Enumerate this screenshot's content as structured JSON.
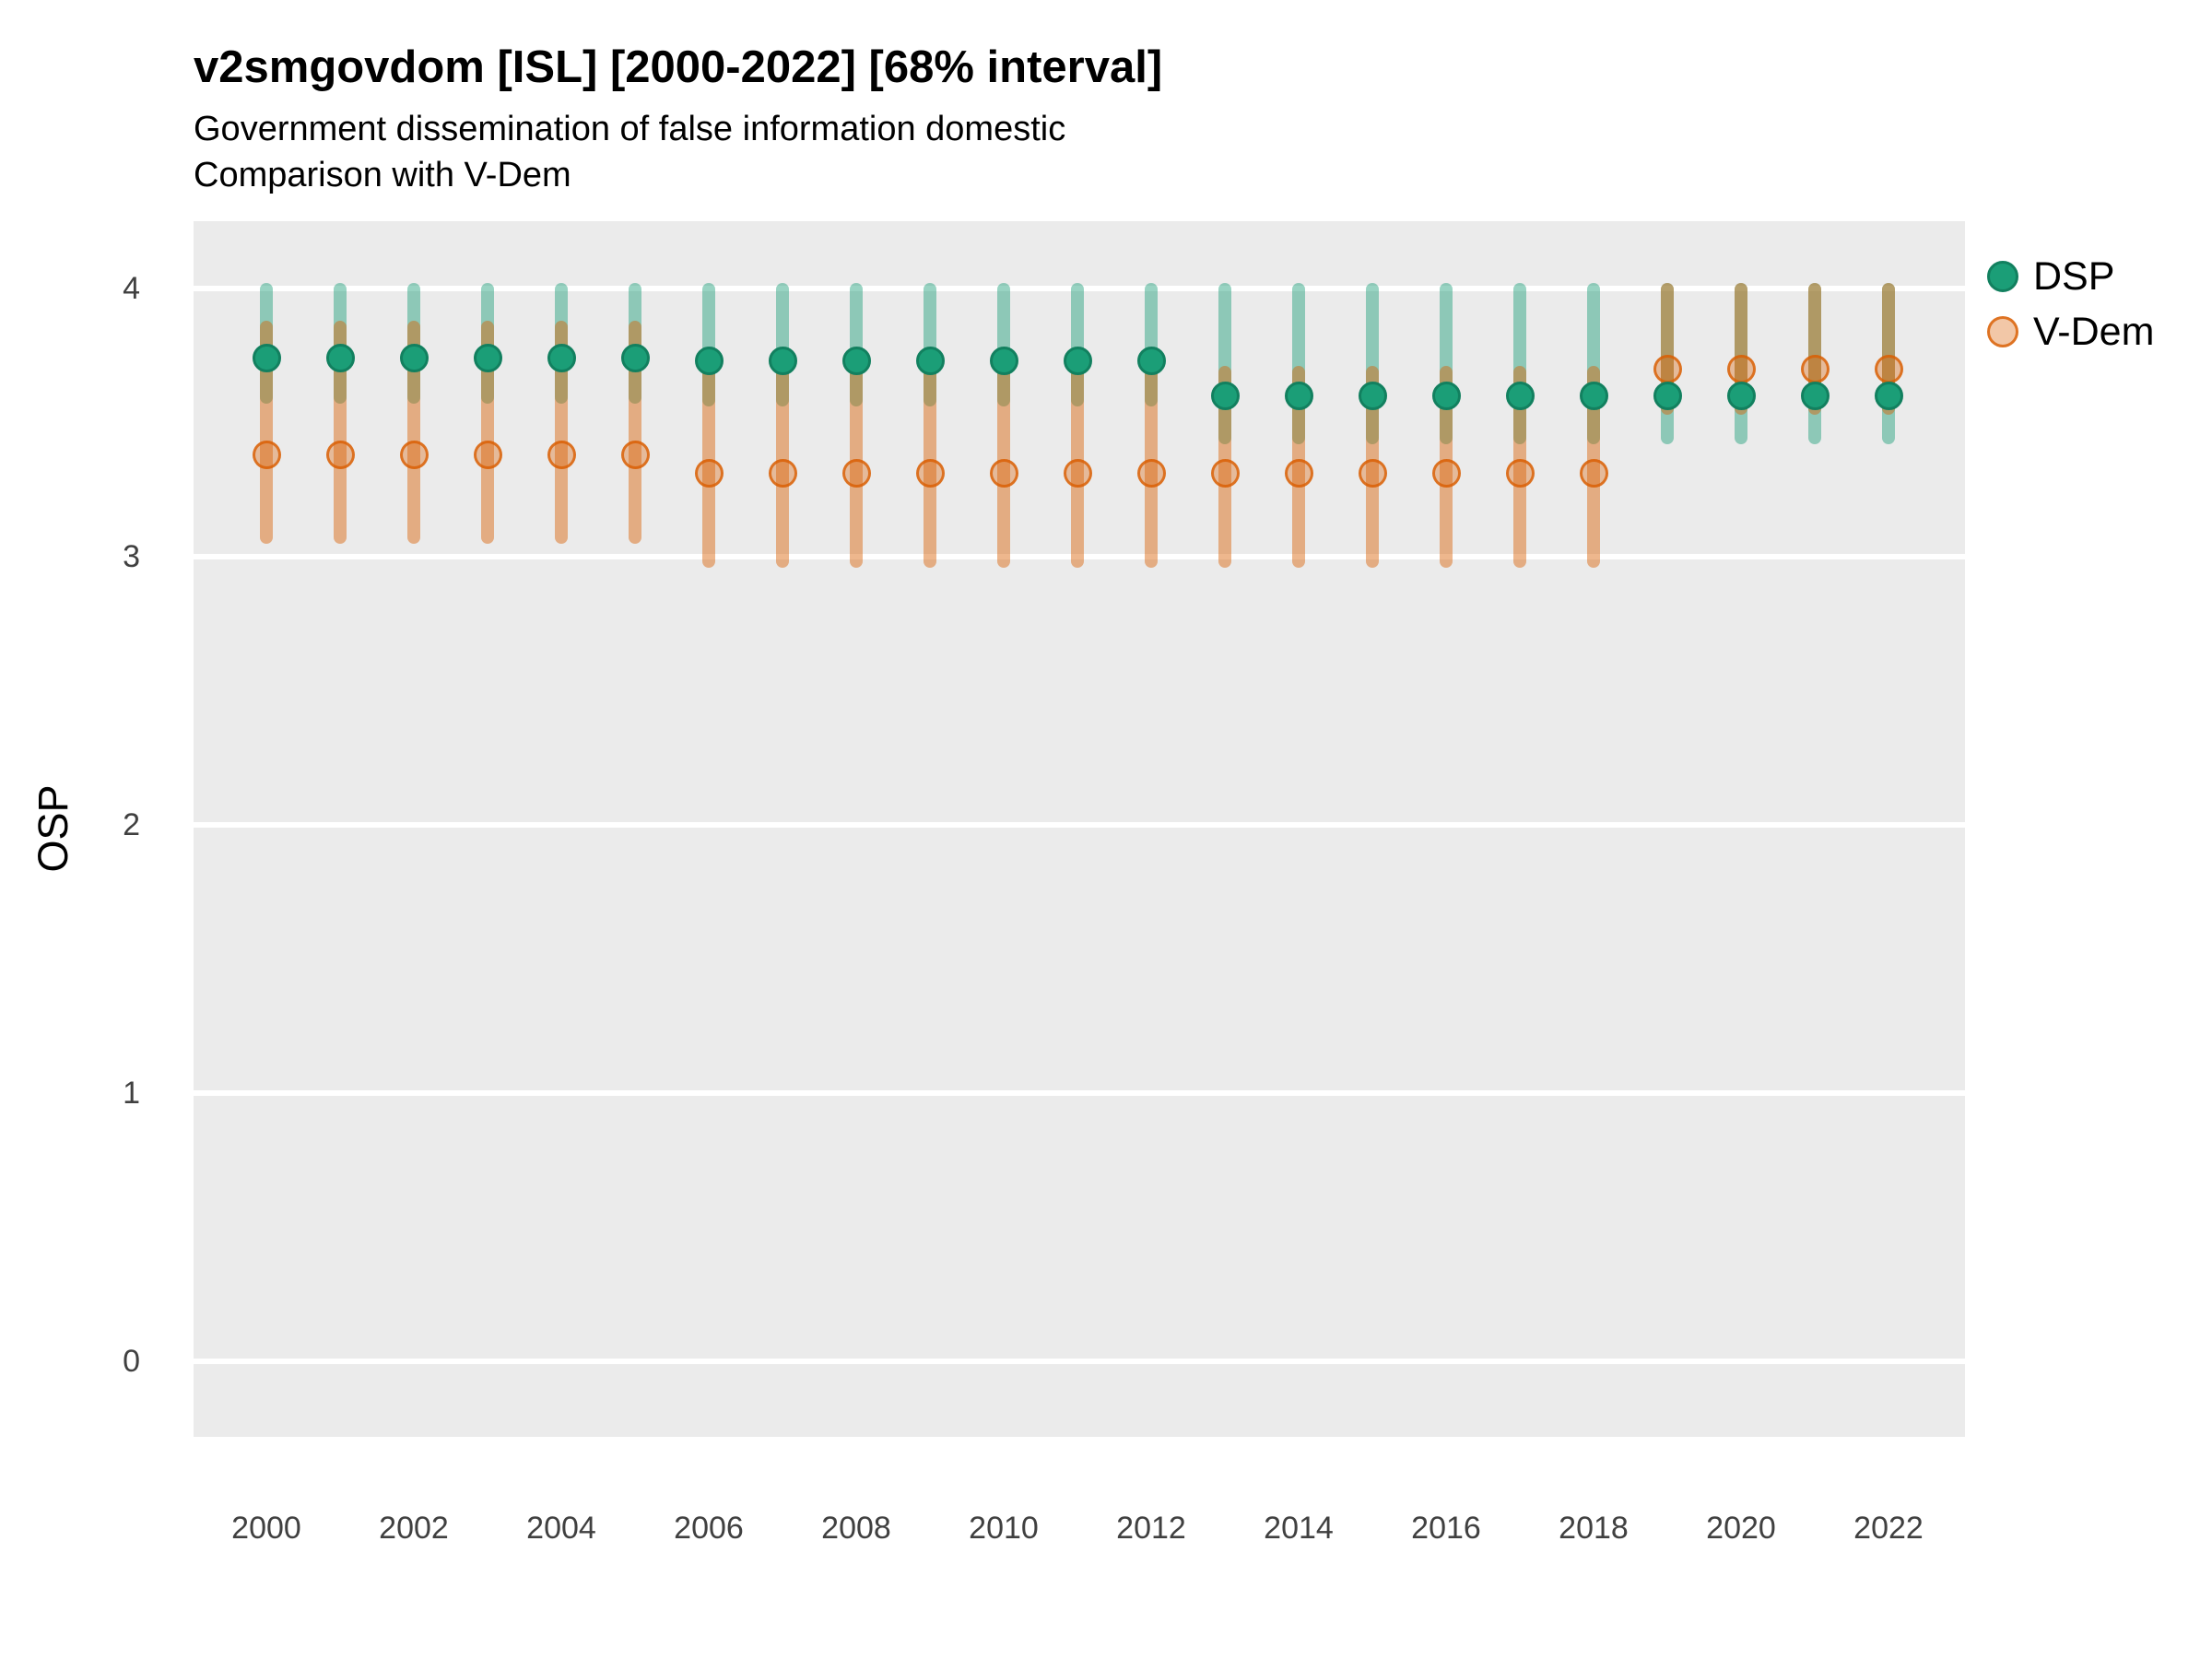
{
  "chart_data": {
    "type": "scatter",
    "title": "v2smgovdom [ISL] [2000-2022] [68% interval]",
    "subtitle1": "Government dissemination of false information domestic",
    "subtitle2": "Comparison with V-Dem",
    "ylabel": "OSP",
    "interval": "68%",
    "ylim": [
      0,
      4
    ],
    "yticks": [
      0,
      1,
      2,
      3,
      4
    ],
    "xtick_labels": [
      2000,
      2002,
      2004,
      2006,
      2008,
      2010,
      2012,
      2014,
      2016,
      2018,
      2020,
      2022
    ],
    "x": [
      2000,
      2001,
      2002,
      2003,
      2004,
      2005,
      2006,
      2007,
      2008,
      2009,
      2010,
      2011,
      2012,
      2013,
      2014,
      2015,
      2016,
      2017,
      2018,
      2019,
      2020,
      2021,
      2022
    ],
    "grid": "horizontal major gridlines, white on gray panel",
    "legend_position": "right",
    "panel_bg": "#EBEBEB",
    "grid_color": "#FFFFFF",
    "axis_text_color": "#404040",
    "series": [
      {
        "name": "DSP",
        "color": "#1B9E77",
        "est": [
          3.74,
          3.74,
          3.74,
          3.74,
          3.74,
          3.74,
          3.73,
          3.73,
          3.73,
          3.73,
          3.73,
          3.73,
          3.73,
          3.6,
          3.6,
          3.6,
          3.6,
          3.6,
          3.6,
          3.6,
          3.6,
          3.6,
          3.6
        ],
        "lo": [
          3.59,
          3.59,
          3.59,
          3.59,
          3.59,
          3.59,
          3.58,
          3.58,
          3.58,
          3.58,
          3.58,
          3.58,
          3.58,
          3.44,
          3.44,
          3.44,
          3.44,
          3.44,
          3.44,
          3.44,
          3.44,
          3.44,
          3.44
        ],
        "hi": [
          4.0,
          4.0,
          4.0,
          4.0,
          4.0,
          4.0,
          4.0,
          4.0,
          4.0,
          4.0,
          4.0,
          4.0,
          4.0,
          4.0,
          4.0,
          4.0,
          4.0,
          4.0,
          4.0,
          4.0,
          4.0,
          4.0,
          4.0
        ]
      },
      {
        "name": "V-Dem",
        "color": "#D95F02",
        "est": [
          3.38,
          3.38,
          3.38,
          3.38,
          3.38,
          3.38,
          3.31,
          3.31,
          3.31,
          3.31,
          3.31,
          3.31,
          3.31,
          3.31,
          3.31,
          3.31,
          3.31,
          3.31,
          3.31,
          3.7,
          3.7,
          3.7,
          3.7
        ],
        "lo": [
          3.07,
          3.07,
          3.07,
          3.07,
          3.07,
          3.07,
          2.98,
          2.98,
          2.98,
          2.98,
          2.98,
          2.98,
          2.98,
          2.98,
          2.98,
          2.98,
          2.98,
          2.98,
          2.98,
          3.55,
          3.55,
          3.55,
          3.55
        ],
        "hi": [
          3.86,
          3.86,
          3.86,
          3.86,
          3.86,
          3.86,
          3.73,
          3.73,
          3.73,
          3.73,
          3.73,
          3.73,
          3.73,
          3.69,
          3.69,
          3.69,
          3.69,
          3.69,
          3.69,
          4.0,
          4.0,
          4.0,
          4.0
        ]
      }
    ]
  }
}
